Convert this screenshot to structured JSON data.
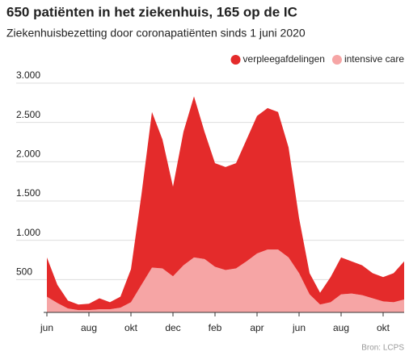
{
  "chart_data": {
    "type": "stacked-area",
    "title": "650 patiënten in het ziekenhuis, 165 op de IC",
    "subtitle": "Ziekenhuisbezetting door coronapatiënten sinds 1 juni 2020",
    "source": "Bron: LCPS",
    "categories": [
      "jun",
      null,
      null,
      null,
      "aug",
      null,
      null,
      null,
      "okt",
      null,
      null,
      null,
      "dec",
      null,
      null,
      null,
      "feb",
      null,
      null,
      null,
      "apr",
      null,
      null,
      null,
      "jun",
      null,
      null,
      null,
      "aug",
      null,
      null,
      null,
      "okt",
      null,
      null
    ],
    "series": [
      {
        "name": "intensive care",
        "color": "#f6a5a5",
        "values": [
          200,
          120,
          50,
          30,
          30,
          40,
          40,
          60,
          130,
          350,
          570,
          560,
          460,
          600,
          700,
          680,
          580,
          540,
          560,
          650,
          750,
          800,
          800,
          700,
          500,
          230,
          100,
          130,
          230,
          240,
          220,
          180,
          140,
          130,
          165
        ]
      },
      {
        "name": "verpleegafdelingen",
        "color": "#e42b2b",
        "values": [
          500,
          230,
          100,
          70,
          80,
          140,
          90,
          140,
          420,
          1150,
          1980,
          1640,
          1140,
          1700,
          2050,
          1620,
          1320,
          1310,
          1340,
          1550,
          1750,
          1800,
          1750,
          1400,
          700,
          270,
          150,
          320,
          470,
          410,
          380,
          320,
          310,
          370,
          485
        ]
      }
    ],
    "ylim": [
      0,
      3000
    ],
    "yticks": [
      500,
      {
        "value": 1000,
        "label": "1.000"
      },
      {
        "value": 1500,
        "label": "1.500"
      },
      {
        "value": 2000,
        "label": "2.000"
      },
      {
        "value": 2500,
        "label": "2.500"
      },
      {
        "value": 3000,
        "label": "3.000"
      }
    ],
    "grid": true,
    "legend": "top-right"
  }
}
